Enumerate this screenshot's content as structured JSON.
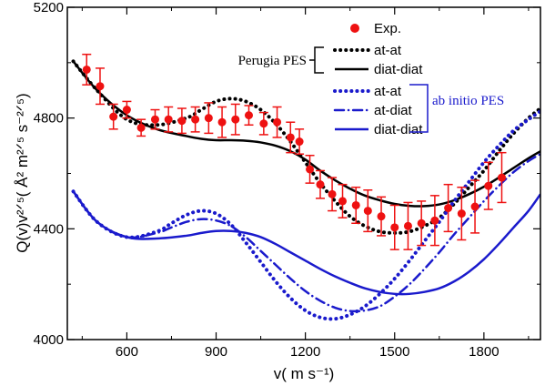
{
  "chart_data": {
    "type": "line",
    "xlabel": "v( m s⁻¹)",
    "ylabel": "Q(v)v²ᐟ⁵( Å² m²ᐟ⁵ s⁻²ᐟ⁵)",
    "xlim": [
      400,
      1990
    ],
    "ylim": [
      4000,
      5200
    ],
    "x_ticks": [
      600,
      900,
      1200,
      1500,
      1800
    ],
    "y_ticks": [
      4000,
      4400,
      4800,
      5200
    ],
    "x_tick_labels": [
      "600",
      "900",
      "1200",
      "1500",
      "1800"
    ],
    "y_tick_labels": [
      "4000",
      "4400",
      "4800",
      "5200"
    ],
    "legend_groups": [
      {
        "label": "Perugia PES",
        "color": "#000000"
      },
      {
        "label": "ab initio PES",
        "color": "#1a1acc"
      }
    ],
    "experiment": {
      "name": "Exp.",
      "color": "#ee1111",
      "points": [
        {
          "x": 465,
          "y": 4975,
          "err": 55
        },
        {
          "x": 510,
          "y": 4915,
          "err": 65
        },
        {
          "x": 555,
          "y": 4805,
          "err": 45
        },
        {
          "x": 600,
          "y": 4830,
          "err": 30
        },
        {
          "x": 648,
          "y": 4765,
          "err": 30
        },
        {
          "x": 695,
          "y": 4795,
          "err": 35
        },
        {
          "x": 740,
          "y": 4795,
          "err": 45
        },
        {
          "x": 785,
          "y": 4790,
          "err": 45
        },
        {
          "x": 830,
          "y": 4795,
          "err": 45
        },
        {
          "x": 875,
          "y": 4800,
          "err": 55
        },
        {
          "x": 920,
          "y": 4785,
          "err": 55
        },
        {
          "x": 965,
          "y": 4795,
          "err": 55
        },
        {
          "x": 1010,
          "y": 4810,
          "err": 35
        },
        {
          "x": 1060,
          "y": 4780,
          "err": 40
        },
        {
          "x": 1105,
          "y": 4785,
          "err": 55
        },
        {
          "x": 1150,
          "y": 4730,
          "err": 55
        },
        {
          "x": 1180,
          "y": 4715,
          "err": 45
        },
        {
          "x": 1215,
          "y": 4615,
          "err": 50
        },
        {
          "x": 1250,
          "y": 4560,
          "err": 50
        },
        {
          "x": 1290,
          "y": 4525,
          "err": 60
        },
        {
          "x": 1325,
          "y": 4500,
          "err": 60
        },
        {
          "x": 1370,
          "y": 4485,
          "err": 65
        },
        {
          "x": 1410,
          "y": 4465,
          "err": 75
        },
        {
          "x": 1455,
          "y": 4445,
          "err": 70
        },
        {
          "x": 1500,
          "y": 4405,
          "err": 80
        },
        {
          "x": 1545,
          "y": 4410,
          "err": 85
        },
        {
          "x": 1590,
          "y": 4420,
          "err": 80
        },
        {
          "x": 1635,
          "y": 4430,
          "err": 90
        },
        {
          "x": 1680,
          "y": 4475,
          "err": 85
        },
        {
          "x": 1725,
          "y": 4455,
          "err": 95
        },
        {
          "x": 1770,
          "y": 4480,
          "err": 95
        },
        {
          "x": 1815,
          "y": 4555,
          "err": 85
        },
        {
          "x": 1860,
          "y": 4585,
          "err": 90
        }
      ]
    },
    "series": [
      {
        "name": "at-at",
        "group": "Perugia PES",
        "color": "#000000",
        "style": "dotted",
        "x": [
          420,
          500,
          600,
          700,
          800,
          850,
          900,
          950,
          1000,
          1050,
          1100,
          1150,
          1200,
          1250,
          1300,
          1350,
          1400,
          1450,
          1500,
          1550,
          1600,
          1650,
          1700,
          1750,
          1800,
          1850,
          1900,
          1950,
          1990
        ],
        "y": [
          5005,
          4900,
          4795,
          4775,
          4800,
          4830,
          4860,
          4870,
          4860,
          4830,
          4780,
          4715,
          4640,
          4565,
          4500,
          4445,
          4410,
          4390,
          4385,
          4390,
          4410,
          4440,
          4490,
          4550,
          4610,
          4680,
          4745,
          4800,
          4835
        ]
      },
      {
        "name": "diat-diat",
        "group": "Perugia PES",
        "color": "#000000",
        "style": "solid",
        "x": [
          420,
          500,
          600,
          700,
          800,
          850,
          900,
          950,
          1000,
          1050,
          1100,
          1150,
          1200,
          1250,
          1300,
          1350,
          1400,
          1450,
          1500,
          1550,
          1600,
          1650,
          1700,
          1750,
          1800,
          1850,
          1900,
          1950,
          1990
        ],
        "y": [
          5005,
          4900,
          4810,
          4760,
          4735,
          4725,
          4720,
          4720,
          4718,
          4712,
          4700,
          4680,
          4650,
          4610,
          4575,
          4545,
          4520,
          4503,
          4490,
          4483,
          4482,
          4488,
          4503,
          4525,
          4552,
          4585,
          4620,
          4655,
          4680
        ]
      },
      {
        "name": "at-at",
        "group": "ab initio PES",
        "color": "#1a1acc",
        "style": "dotted",
        "x": [
          420,
          500,
          600,
          700,
          750,
          800,
          850,
          900,
          950,
          1000,
          1050,
          1100,
          1150,
          1200,
          1250,
          1300,
          1350,
          1400,
          1450,
          1500,
          1550,
          1600,
          1650,
          1700,
          1750,
          1800,
          1850,
          1900,
          1950,
          1990
        ],
        "y": [
          4535,
          4425,
          4370,
          4390,
          4420,
          4450,
          4465,
          4455,
          4415,
          4350,
          4280,
          4210,
          4150,
          4105,
          4080,
          4075,
          4090,
          4120,
          4165,
          4220,
          4285,
          4355,
          4425,
          4500,
          4570,
          4640,
          4700,
          4755,
          4795,
          4825
        ]
      },
      {
        "name": "at-diat",
        "group": "ab initio PES",
        "color": "#1a1acc",
        "style": "dashdot",
        "x": [
          420,
          500,
          600,
          700,
          750,
          800,
          850,
          900,
          950,
          1000,
          1050,
          1100,
          1150,
          1200,
          1250,
          1300,
          1350,
          1400,
          1450,
          1500,
          1550,
          1600,
          1650,
          1700,
          1750,
          1800,
          1850,
          1900,
          1950,
          1990
        ],
        "y": [
          4535,
          4425,
          4370,
          4385,
          4405,
          4425,
          4435,
          4430,
          4410,
          4370,
          4320,
          4270,
          4220,
          4175,
          4140,
          4115,
          4103,
          4105,
          4120,
          4155,
          4200,
          4255,
          4315,
          4380,
          4440,
          4500,
          4555,
          4605,
          4645,
          4670
        ]
      },
      {
        "name": "diat-diat",
        "group": "ab initio PES",
        "color": "#1a1acc",
        "style": "solid",
        "x": [
          420,
          500,
          600,
          700,
          800,
          850,
          900,
          950,
          1000,
          1050,
          1100,
          1150,
          1200,
          1250,
          1300,
          1350,
          1400,
          1450,
          1500,
          1550,
          1600,
          1650,
          1700,
          1750,
          1800,
          1850,
          1900,
          1950,
          1990
        ],
        "y": [
          4535,
          4425,
          4370,
          4365,
          4375,
          4385,
          4392,
          4392,
          4385,
          4370,
          4345,
          4315,
          4285,
          4255,
          4228,
          4205,
          4185,
          4172,
          4165,
          4165,
          4172,
          4185,
          4210,
          4245,
          4290,
          4345,
          4405,
          4465,
          4525
        ]
      }
    ]
  }
}
